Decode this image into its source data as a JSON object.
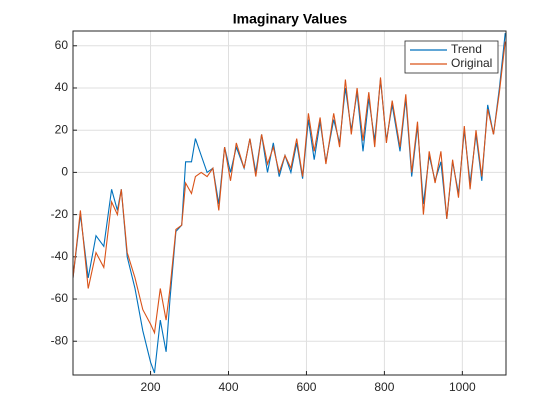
{
  "chart_data": {
    "type": "line",
    "title": "Imaginary Values",
    "x": [
      1,
      20,
      40,
      60,
      80,
      100,
      115,
      125,
      140,
      160,
      180,
      200,
      210,
      225,
      240,
      250,
      265,
      280,
      290,
      305,
      315,
      330,
      345,
      360,
      375,
      390,
      405,
      420,
      440,
      455,
      470,
      485,
      500,
      515,
      530,
      545,
      560,
      575,
      590,
      605,
      620,
      635,
      650,
      670,
      685,
      700,
      715,
      730,
      745,
      760,
      775,
      790,
      805,
      820,
      840,
      855,
      870,
      885,
      900,
      915,
      930,
      945,
      960,
      975,
      990,
      1005,
      1020,
      1035,
      1050,
      1065,
      1080,
      1095,
      1110
    ],
    "series": [
      {
        "name": "Trend",
        "color": "#0072BD",
        "values": [
          -50,
          -20,
          -50,
          -30,
          -35,
          -8,
          -18,
          -8,
          -40,
          -55,
          -75,
          -90,
          -95,
          -70,
          -85,
          -60,
          -28,
          -25,
          5,
          5,
          16,
          8,
          0,
          2,
          -15,
          12,
          0,
          12,
          2,
          16,
          0,
          18,
          0,
          14,
          -2,
          8,
          0,
          14,
          -3,
          25,
          6,
          24,
          5,
          25,
          14,
          40,
          20,
          38,
          10,
          35,
          15,
          44,
          15,
          32,
          10,
          35,
          -2,
          22,
          -15,
          8,
          -4,
          5,
          -22,
          5,
          -10,
          20,
          -5,
          18,
          -4,
          32,
          18,
          40,
          66
        ]
      },
      {
        "name": "Original",
        "color": "#D95319",
        "values": [
          -50,
          -18,
          -55,
          -38,
          -45,
          -14,
          -20,
          -8,
          -38,
          -50,
          -65,
          -72,
          -76,
          -55,
          -70,
          -55,
          -27,
          -25,
          -5,
          -10,
          -2,
          0,
          -2,
          2,
          -18,
          12,
          -4,
          14,
          2,
          16,
          -2,
          18,
          4,
          12,
          0,
          8,
          2,
          16,
          -2,
          28,
          10,
          26,
          4,
          28,
          12,
          44,
          18,
          40,
          15,
          38,
          12,
          45,
          14,
          34,
          12,
          37,
          0,
          24,
          -20,
          10,
          -5,
          10,
          -22,
          6,
          -12,
          22,
          -8,
          20,
          -2,
          30,
          18,
          38,
          62
        ]
      }
    ],
    "xlim": [
      1,
      1112
    ],
    "ylim": [
      -96,
      67
    ],
    "xticks": [
      200,
      400,
      600,
      800,
      1000
    ],
    "yticks": [
      -80,
      -60,
      -40,
      -20,
      0,
      20,
      40,
      60
    ],
    "grid": true,
    "legend": "top-right"
  }
}
